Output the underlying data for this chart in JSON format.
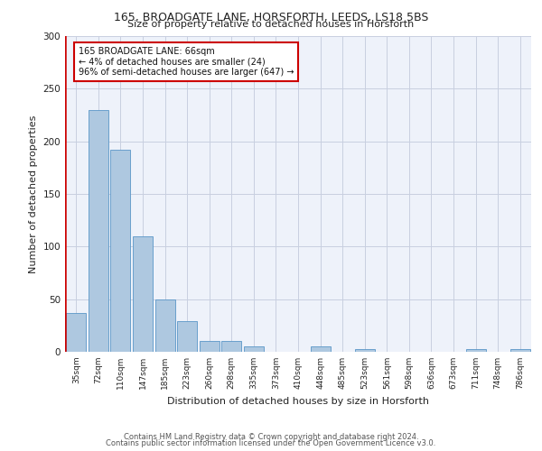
{
  "title_line1": "165, BROADGATE LANE, HORSFORTH, LEEDS, LS18 5BS",
  "title_line2": "Size of property relative to detached houses in Horsforth",
  "xlabel": "Distribution of detached houses by size in Horsforth",
  "ylabel": "Number of detached properties",
  "footer_line1": "Contains HM Land Registry data © Crown copyright and database right 2024.",
  "footer_line2": "Contains public sector information licensed under the Open Government Licence v3.0.",
  "categories": [
    "35sqm",
    "72sqm",
    "110sqm",
    "147sqm",
    "185sqm",
    "223sqm",
    "260sqm",
    "298sqm",
    "335sqm",
    "373sqm",
    "410sqm",
    "448sqm",
    "485sqm",
    "523sqm",
    "561sqm",
    "598sqm",
    "636sqm",
    "673sqm",
    "711sqm",
    "748sqm",
    "786sqm"
  ],
  "values": [
    37,
    230,
    192,
    110,
    50,
    29,
    10,
    10,
    5,
    0,
    0,
    5,
    0,
    3,
    0,
    0,
    0,
    0,
    3,
    0,
    3
  ],
  "bar_color": "#aec8e0",
  "bar_edge_color": "#5a96c8",
  "marker_color": "#cc0000",
  "annotation_text": "165 BROADGATE LANE: 66sqm\n← 4% of detached houses are smaller (24)\n96% of semi-detached houses are larger (647) →",
  "annotation_box_color": "#ffffff",
  "annotation_box_edge_color": "#cc0000",
  "ylim": [
    0,
    300
  ],
  "yticks": [
    0,
    50,
    100,
    150,
    200,
    250,
    300
  ],
  "grid_color": "#c8cfe0",
  "background_color": "#eef2fa"
}
